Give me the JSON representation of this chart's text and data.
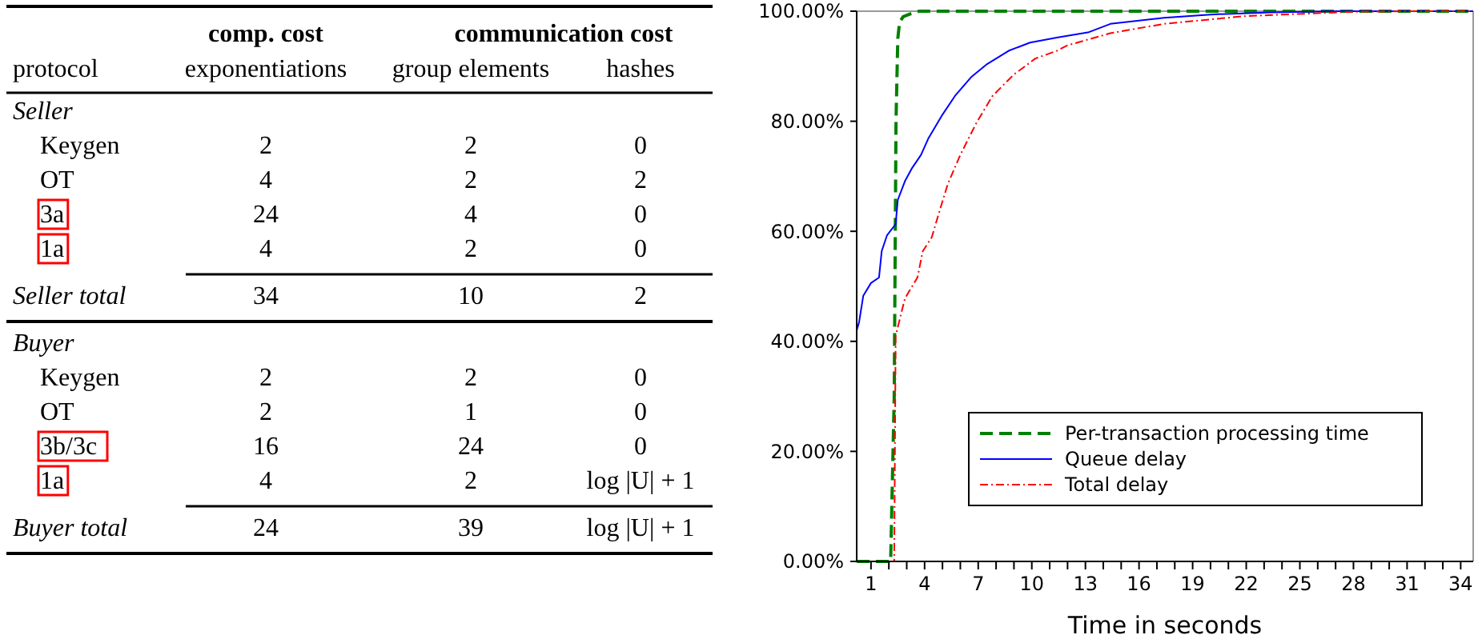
{
  "chart_data": [
    {
      "type": "other",
      "annotations": [
        "comp. cost",
        "communication cost"
      ],
      "categories": [
        "protocol",
        "exponentiations",
        "group elements",
        "hashes"
      ],
      "y_categories": [
        "Seller",
        "Keygen",
        "OT",
        "3a",
        "1a",
        "Seller total",
        "Buyer",
        "Keygen",
        "OT",
        "3b/3c",
        "1a",
        "Buyer total"
      ],
      "cell_labels": [
        [
          null,
          null,
          null
        ],
        [
          "2",
          "2",
          "0"
        ],
        [
          "4",
          "2",
          "2"
        ],
        [
          "24",
          "4",
          "0"
        ],
        [
          "4",
          "2",
          "0"
        ],
        [
          "34",
          "10",
          "2"
        ],
        [
          null,
          null,
          null
        ],
        [
          "2",
          "2",
          "0"
        ],
        [
          "2",
          "1",
          "0"
        ],
        [
          "16",
          "24",
          "0"
        ],
        [
          "4",
          "2",
          "log |U| + 1"
        ],
        [
          "24",
          "39",
          "log |U| + 1"
        ]
      ]
    },
    {
      "type": "line",
      "xlabel": "Time in seconds",
      "legend": "bottom right",
      "grid": false,
      "marker": "none",
      "xlim": [
        0.2,
        34.7
      ],
      "ylim": [
        0,
        100
      ],
      "xticks": [
        1,
        {
          "value": 2,
          "label": null
        },
        {
          "value": 3,
          "label": null
        },
        4,
        {
          "value": 5,
          "label": null
        },
        {
          "value": 6,
          "label": null
        },
        7,
        {
          "value": 8,
          "label": null
        },
        {
          "value": 9,
          "label": null
        },
        10,
        {
          "value": 11,
          "label": null
        },
        {
          "value": 12,
          "label": null
        },
        13,
        {
          "value": 14,
          "label": null
        },
        {
          "value": 15,
          "label": null
        },
        16,
        {
          "value": 17,
          "label": null
        },
        {
          "value": 18,
          "label": null
        },
        19,
        {
          "value": 20,
          "label": null
        },
        {
          "value": 21,
          "label": null
        },
        22,
        {
          "value": 23,
          "label": null
        },
        {
          "value": 24,
          "label": null
        },
        25,
        {
          "value": 26,
          "label": null
        },
        {
          "value": 27,
          "label": null
        },
        28,
        {
          "value": 29,
          "label": null
        },
        {
          "value": 30,
          "label": null
        },
        31,
        {
          "value": 32,
          "label": null
        },
        {
          "value": 33,
          "label": null
        },
        34
      ],
      "yticks": [
        {
          "value": 0,
          "label": "0.00%"
        },
        {
          "value": 20,
          "label": "20.00%"
        },
        {
          "value": 40,
          "label": "40.00%"
        },
        {
          "value": 60,
          "label": "60.00%"
        },
        {
          "value": 80,
          "label": "80.00%"
        },
        {
          "value": 100,
          "label": "100.00%"
        }
      ],
      "series": [
        {
          "name": "Per-transaction processing time",
          "color": "#008000",
          "line_style": "dashed",
          "x": [
            0.2,
            2.1,
            2.3,
            2.4,
            2.5,
            2.6,
            2.8,
            3.2,
            3.7,
            34.7
          ],
          "values": [
            0,
            0,
            30,
            80,
            95,
            98,
            99,
            99.5,
            100,
            100
          ]
        },
        {
          "name": "Queue delay",
          "color": "#0000ff",
          "line_style": "solid",
          "x": [
            0.2,
            0.33,
            0.57,
            1.0,
            1.45,
            1.6,
            1.9,
            2.38,
            2.5,
            2.9,
            3.3,
            3.8,
            4.2,
            5.0,
            5.7,
            6.6,
            7.5,
            8.7,
            9.9,
            11.4,
            13.2,
            14.4,
            17.4,
            20,
            23.4,
            27,
            34.7
          ],
          "values": [
            42,
            43.4,
            48.3,
            50.6,
            51.6,
            56.4,
            59.3,
            61.3,
            65.7,
            69.1,
            71.5,
            73.9,
            76.8,
            81.2,
            84.6,
            88,
            90.4,
            92.8,
            94.3,
            95.2,
            96.2,
            97.7,
            98.8,
            99.4,
            99.8,
            100,
            100
          ]
        },
        {
          "name": "Total delay",
          "color": "#ff0000",
          "line_style": "dotted",
          "x": [
            0.2,
            2.3,
            2.38,
            2.9,
            3.6,
            3.9,
            4.4,
            4.8,
            5.3,
            6.0,
            6.9,
            7.8,
            9.0,
            10.2,
            11.4,
            12.0,
            14.4,
            17.4,
            21.9,
            28,
            31,
            34.7
          ],
          "values": [
            0,
            0,
            41,
            47.8,
            51.6,
            56.4,
            58.9,
            63.3,
            68.6,
            73.9,
            79.7,
            84.6,
            88.5,
            91.4,
            92.8,
            93.8,
            96,
            97.7,
            99.1,
            99.9,
            100,
            100
          ]
        }
      ]
    }
  ]
}
